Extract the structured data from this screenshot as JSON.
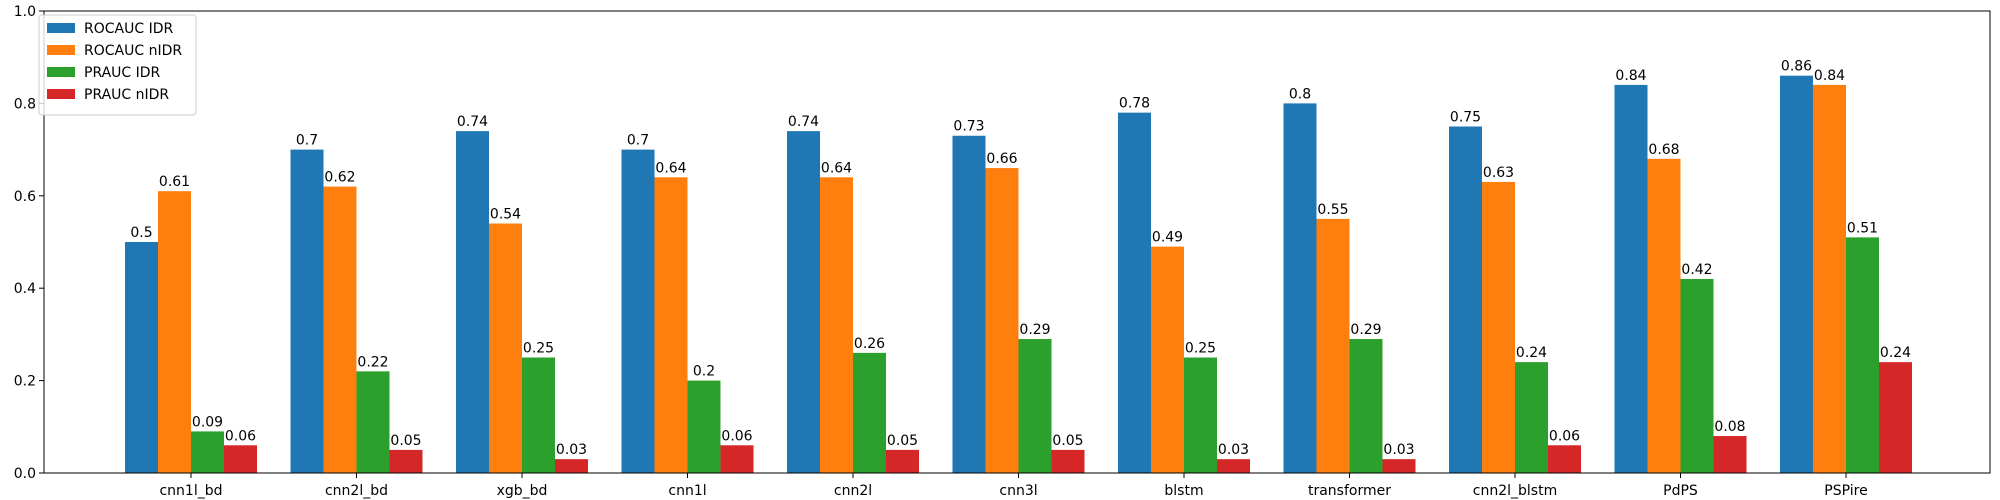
{
  "chart_data": {
    "type": "bar",
    "title": "",
    "xlabel": "",
    "ylabel": "",
    "ylim": [
      0,
      1.0
    ],
    "yticks": [
      0.0,
      0.2,
      0.4,
      0.6,
      0.8,
      1.0
    ],
    "ytick_labels": [
      "0.0",
      "0.2",
      "0.4",
      "0.6",
      "0.8",
      "1.0"
    ],
    "grid": false,
    "legend_position": "top-left",
    "categories": [
      "cnn1l_bd",
      "cnn2l_bd",
      "xgb_bd",
      "cnn1l",
      "cnn2l",
      "cnn3l",
      "blstm",
      "transformer",
      "cnn2l_blstm",
      "PdPS",
      "PSPire"
    ],
    "series": [
      {
        "name": "ROCAUC IDR",
        "color": "#1f77b4",
        "values": [
          0.5,
          0.7,
          0.74,
          0.7,
          0.74,
          0.73,
          0.78,
          0.8,
          0.75,
          0.84,
          0.86
        ],
        "labels": [
          "0.5",
          "0.7",
          "0.74",
          "0.7",
          "0.74",
          "0.73",
          "0.78",
          "0.8",
          "0.75",
          "0.84",
          "0.86"
        ]
      },
      {
        "name": "ROCAUC nIDR",
        "color": "#ff7f0e",
        "values": [
          0.61,
          0.62,
          0.54,
          0.64,
          0.64,
          0.66,
          0.49,
          0.55,
          0.63,
          0.68,
          0.84
        ],
        "labels": [
          "0.61",
          "0.62",
          "0.54",
          "0.64",
          "0.64",
          "0.66",
          "0.49",
          "0.55",
          "0.63",
          "0.68",
          "0.84"
        ]
      },
      {
        "name": "PRAUC IDR",
        "color": "#2ca02c",
        "values": [
          0.09,
          0.22,
          0.25,
          0.2,
          0.26,
          0.29,
          0.25,
          0.29,
          0.24,
          0.42,
          0.51
        ],
        "labels": [
          "0.09",
          "0.22",
          "0.25",
          "0.2",
          "0.26",
          "0.29",
          "0.25",
          "0.29",
          "0.24",
          "0.42",
          "0.51"
        ]
      },
      {
        "name": "PRAUC nIDR",
        "color": "#d62728",
        "values": [
          0.06,
          0.05,
          0.03,
          0.06,
          0.05,
          0.05,
          0.03,
          0.03,
          0.06,
          0.08,
          0.24
        ],
        "labels": [
          "0.06",
          "0.05",
          "0.03",
          "0.06",
          "0.05",
          "0.05",
          "0.03",
          "0.03",
          "0.06",
          "0.08",
          "0.24"
        ]
      }
    ]
  }
}
